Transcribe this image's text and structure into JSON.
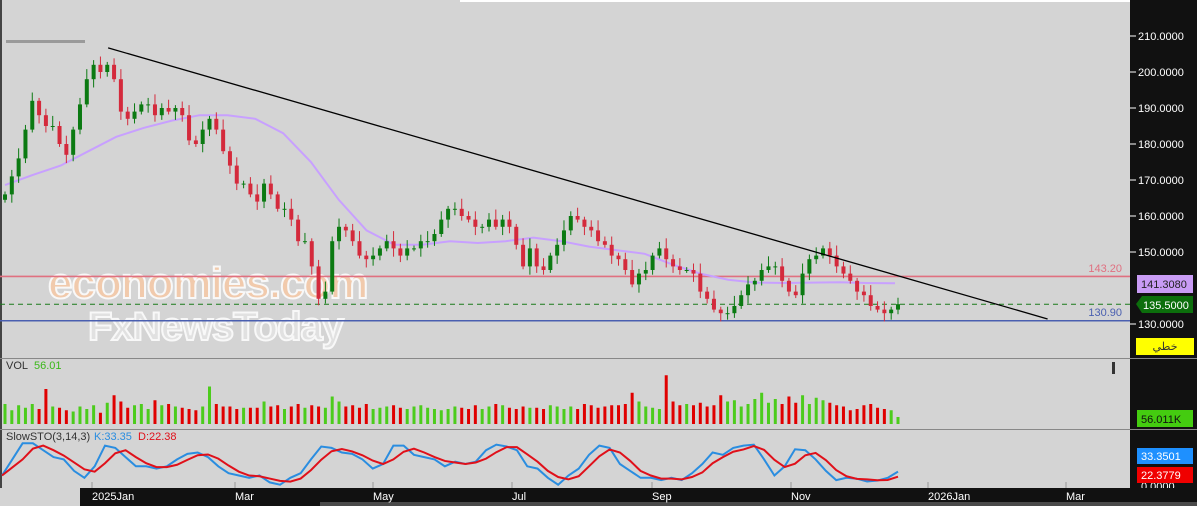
{
  "chart_data": {
    "type": "candlestick",
    "price_axis": {
      "ticks": [
        "210.0000",
        "200.0000",
        "190.0000",
        "180.0000",
        "170.0000",
        "160.0000",
        "150.0000",
        "130.0000"
      ],
      "ylim": [
        130,
        210
      ]
    },
    "time_axis": {
      "ticks": [
        "2025Jan",
        "Mar",
        "May",
        "Jul",
        "Sep",
        "Nov",
        "2026Jan",
        "Mar"
      ]
    },
    "closes": [
      166,
      171,
      176,
      184,
      192,
      188,
      185,
      185,
      180,
      177,
      184,
      191,
      198,
      202,
      200,
      202,
      198,
      189,
      187,
      189,
      191,
      191,
      188,
      190,
      189,
      190,
      188,
      181,
      180,
      184,
      187,
      184,
      178,
      174,
      169,
      169,
      166,
      164,
      169,
      166,
      162,
      162,
      159,
      153,
      153,
      146,
      137,
      139,
      153,
      157,
      156,
      153,
      149,
      148,
      149,
      151,
      153,
      151,
      149,
      151,
      151,
      153,
      153,
      155,
      159,
      162,
      162,
      160,
      159,
      157,
      157,
      159,
      157,
      159,
      157,
      152,
      146,
      151,
      146,
      145,
      149,
      152,
      156,
      160,
      159,
      157,
      156,
      153,
      152,
      149,
      148,
      145,
      141,
      144,
      145,
      149,
      151,
      148,
      146,
      145,
      145,
      144,
      139,
      137,
      134,
      133,
      133,
      135,
      138,
      141,
      142,
      145,
      146,
      146,
      142,
      139,
      138,
      144,
      148,
      149,
      151,
      149,
      146,
      144,
      142,
      139,
      138,
      135,
      134,
      133,
      134,
      135.5
    ],
    "moving_average": {
      "values": [
        168.6,
        171.4,
        174,
        178,
        182,
        184.5,
        186.5,
        188,
        188,
        187,
        183,
        175,
        164.5,
        156,
        152,
        152,
        153,
        152.5,
        153,
        154,
        153,
        151.5,
        150.5,
        149.5,
        146.5,
        144,
        142.3,
        141.5,
        141.4,
        141.5,
        141.6,
        141.4,
        141.308
      ],
      "last": "141.3080",
      "color": "#c8a0ff"
    },
    "last_price": "135.5000",
    "trendline": {
      "start": {
        "date": "2025-01-08",
        "price": 206.7
      },
      "end": {
        "date": "2026-02-20",
        "price": 131.4
      }
    },
    "levels": [
      {
        "price": 143.2,
        "label": "143.20",
        "color": "#e07080"
      },
      {
        "price": 130.9,
        "label": "130.90",
        "color": "#4a5fb0"
      }
    ],
    "line_type_badge": "خطي",
    "volume": {
      "label": "VOL",
      "value": "56.01",
      "axis_value": "56.011K",
      "unit": "K",
      "values": [
        160,
        110,
        150,
        130,
        160,
        120,
        280,
        140,
        130,
        110,
        100,
        140,
        120,
        150,
        90,
        170,
        230,
        180,
        130,
        150,
        160,
        120,
        190,
        150,
        160,
        140,
        130,
        120,
        110,
        140,
        300,
        160,
        140,
        140,
        120,
        130,
        130,
        130,
        180,
        140,
        150,
        120,
        140,
        160,
        130,
        150,
        140,
        130,
        220,
        180,
        140,
        150,
        130,
        160,
        120,
        130,
        140,
        150,
        130,
        120,
        140,
        150,
        130,
        120,
        110,
        120,
        140,
        130,
        120,
        150,
        120,
        140,
        160,
        150,
        130,
        120,
        140,
        130,
        130,
        120,
        150,
        140,
        120,
        140,
        120,
        160,
        150,
        130,
        140,
        150,
        150,
        160,
        250,
        180,
        140,
        130,
        120,
        390,
        180,
        150,
        160,
        150,
        170,
        140,
        150,
        230,
        180,
        190,
        140,
        160,
        200,
        250,
        170,
        200,
        160,
        220,
        170,
        230,
        160,
        210,
        190,
        170,
        150,
        140,
        110,
        120,
        150,
        160,
        130,
        120,
        110,
        56
      ]
    },
    "stochastic": {
      "label": "SlowSTO(3,14,3)",
      "k_label": "K:33.35",
      "d_label": "D:22.38",
      "k_axis": "33.3501",
      "d_axis": "22.3779",
      "zero_label": "0.0000",
      "ylim": [
        0,
        100
      ],
      "k_color": "#2a8de0",
      "d_color": "#e0101a",
      "k": [
        25,
        60,
        95,
        95,
        80,
        65,
        60,
        35,
        20,
        45,
        90,
        85,
        65,
        45,
        45,
        40,
        45,
        60,
        72,
        75,
        65,
        45,
        30,
        25,
        20,
        25,
        10,
        5,
        20,
        30,
        60,
        88,
        85,
        75,
        72,
        60,
        40,
        50,
        90,
        90,
        70,
        65,
        60,
        45,
        55,
        50,
        55,
        80,
        92,
        88,
        80,
        45,
        40,
        20,
        5,
        25,
        40,
        70,
        90,
        85,
        50,
        35,
        20,
        20,
        15,
        20,
        15,
        30,
        50,
        75,
        70,
        85,
        90,
        92,
        60,
        25,
        45,
        82,
        80,
        60,
        35,
        15,
        20,
        18,
        12,
        14,
        20,
        33.35
      ]
    },
    "colors": {
      "up": "#0b7a12",
      "down": "#d42a3c",
      "vol_up": "#4ccc1c",
      "vol_down": "#e00000",
      "background": "#d4d4d4"
    }
  },
  "watermark": {
    "line1": "economies.com",
    "line2": "FxNewsToday"
  }
}
